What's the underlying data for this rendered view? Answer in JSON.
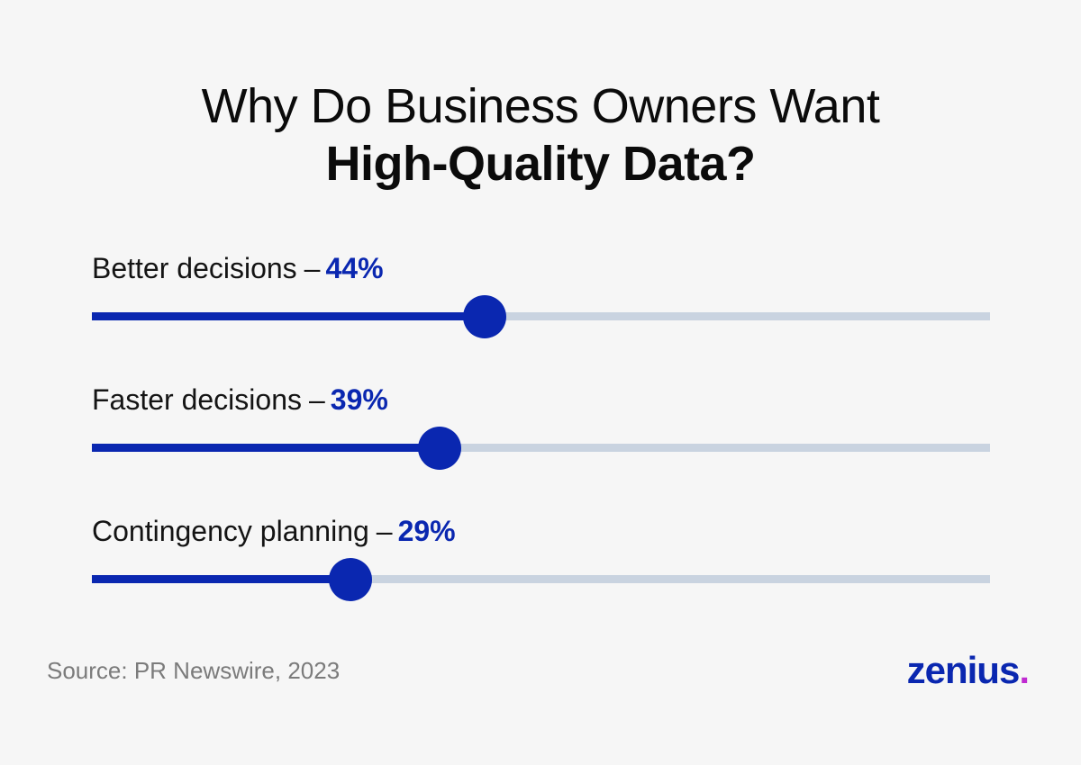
{
  "title": {
    "line1": "Why Do Business Owners Want",
    "line2": "High-Quality Data?"
  },
  "chart_data": {
    "type": "bar",
    "title": "Why Do Business Owners Want High-Quality Data?",
    "categories": [
      "Better decisions",
      "Faster decisions",
      "Contingency planning"
    ],
    "values": [
      44,
      39,
      29
    ],
    "value_labels": [
      "44%",
      "39%",
      "29%"
    ],
    "separator": "–",
    "xlim": [
      0,
      100
    ],
    "unit": "%",
    "orientation": "horizontal",
    "grid": false,
    "colors": {
      "fill": "#0a27b0",
      "track": "#c9d3e0",
      "knob": "#0a27b0"
    }
  },
  "source": {
    "prefix": "Source:",
    "name": "PR Newswire,",
    "year": "2023"
  },
  "logo": {
    "text": "zenius",
    "dot": ".",
    "color": "#0a27b0",
    "dot_color": "#c02bd1"
  }
}
